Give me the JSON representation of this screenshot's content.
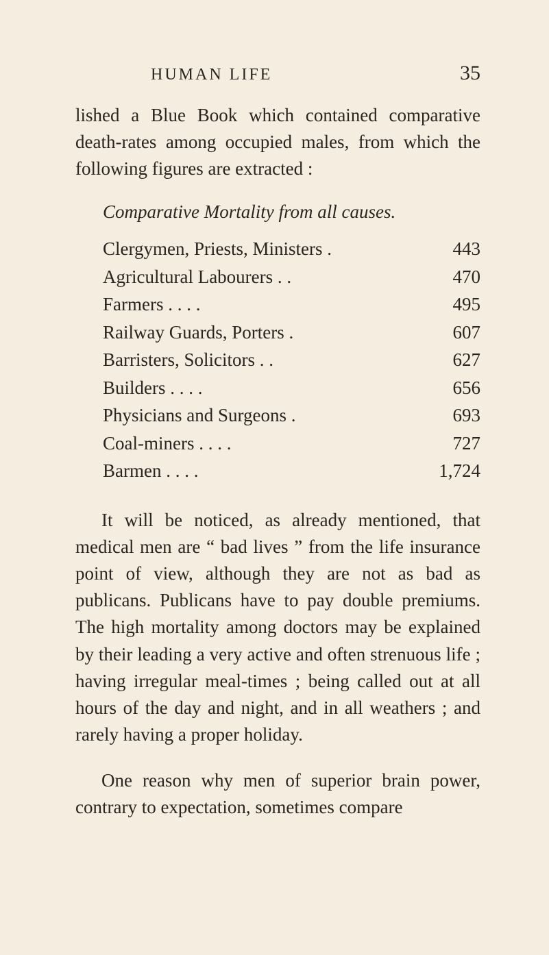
{
  "header": {
    "title": "HUMAN LIFE",
    "page_number": "35"
  },
  "paragraph1": "lished a Blue Book which contained com­parative death-rates among occupied males, from which the following figures are ex­tracted :",
  "table_heading": "Comparative Mortality from all causes.",
  "table": {
    "rows": [
      {
        "label": "Clergymen, Priests, Ministers .",
        "value": "443"
      },
      {
        "label": "Agricultural Labourers .          .",
        "value": "470"
      },
      {
        "label": "Farmers        .           .         .          .",
        "value": "495"
      },
      {
        "label": "Railway Guards, Porters         .",
        "value": "607"
      },
      {
        "label": "Barristers, Solicitors       .         .",
        "value": "627"
      },
      {
        "label": "Builders        .           .         .         .",
        "value": "656"
      },
      {
        "label": "Physicians and Surgeons        .",
        "value": "693"
      },
      {
        "label": "Coal-miners .          .         .         .",
        "value": "727"
      },
      {
        "label": "Barmen         .           .         .         .",
        "value": "1,724"
      }
    ]
  },
  "paragraph2": "It will be noticed, as already mentioned, that medical men are “ bad lives ” from the life insurance point of view, although they are not as bad as publicans. Publicans have to pay double premiums. The high mortality among doctors may be explained by their leading a very active and often strenuous life ; having irregular meal-times ; being called out at all hours of the day and night, and in all weathers ; and rarely having a proper holiday.",
  "paragraph3": "One reason why men of superior brain power, contrary to expectation, sometimes compare"
}
